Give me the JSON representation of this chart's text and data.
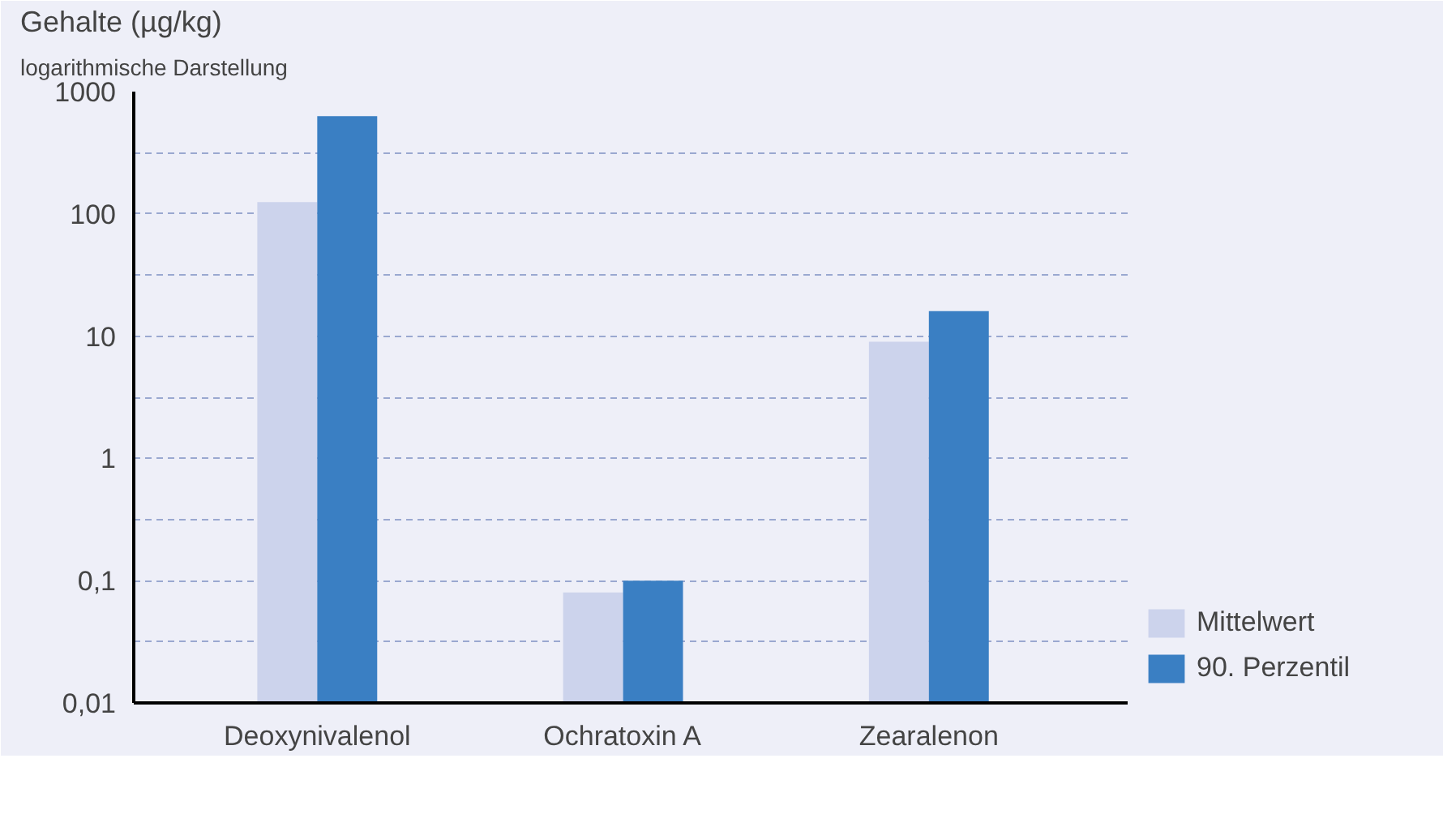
{
  "chart_data": {
    "type": "bar",
    "ylabel": "Gehalte (µg/kg)",
    "subtitle": "logarithmische Darstellung",
    "categories": [
      "Deoxynivalenol",
      "Ochratoxin A",
      "Zearalenon"
    ],
    "series": [
      {
        "name": "Mittelwert",
        "color": "#ccd3ec",
        "values": [
          125,
          0.08,
          9
        ]
      },
      {
        "name": "90. Perzentil",
        "color": "#3a7fc3",
        "values": [
          630,
          0.1,
          16
        ]
      }
    ],
    "log": "y",
    "ylim": [
      0.01,
      1000
    ],
    "yticks": [
      {
        "value": 0.01,
        "label": "0,01"
      },
      {
        "value": 0.0316,
        "label": null
      },
      {
        "value": 0.1,
        "label": "0,1"
      },
      {
        "value": 0.316,
        "label": null
      },
      1,
      {
        "value": 3.16,
        "label": null
      },
      10,
      {
        "value": 31.6,
        "label": null
      },
      100,
      {
        "value": 316,
        "label": null
      },
      1000
    ],
    "grid": "y",
    "legend": "bottom right"
  }
}
